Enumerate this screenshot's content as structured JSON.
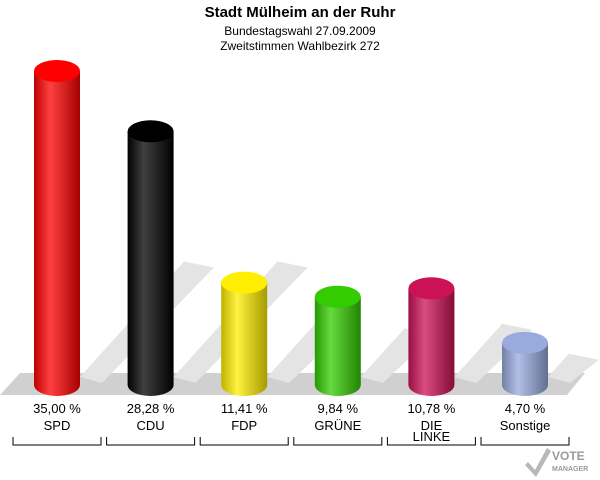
{
  "chart_data": {
    "type": "bar",
    "title": "Stadt Mülheim an der Ruhr",
    "subtitle": [
      "Bundestagswahl 27.09.2009",
      "Zweitstimmen Wahlbezirk 272"
    ],
    "xlabel": "",
    "ylabel": "",
    "ylim": [
      0,
      35
    ],
    "grid": false,
    "legend": "none",
    "categories": [
      [
        "SPD"
      ],
      [
        "CDU"
      ],
      [
        "FDP"
      ],
      [
        "GRÜNE"
      ],
      [
        "DIE",
        "LINKE"
      ],
      [
        "Sonstige"
      ]
    ],
    "values": [
      35.0,
      28.28,
      11.41,
      9.84,
      10.78,
      4.7
    ],
    "value_labels": [
      "35,00 %",
      "28,28 %",
      "11,41 %",
      "9,84 %",
      "10,78 %",
      "4,70 %"
    ],
    "colors": [
      "#ff0000",
      "#000000",
      "#ffee00",
      "#33cc00",
      "#cc1155",
      "#99aadd"
    ]
  },
  "logo": {
    "line1": "VOTE",
    "line2": "MANAGER"
  }
}
